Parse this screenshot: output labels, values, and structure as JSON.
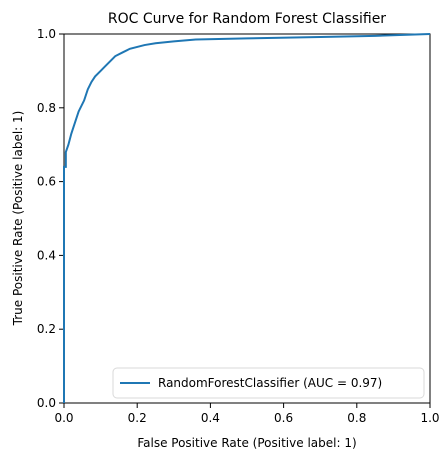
{
  "chart_data": {
    "type": "line",
    "title": "ROC Curve for Random Forest Classifier",
    "xlabel": "False Positive Rate (Positive label: 1)",
    "ylabel": "True Positive Rate (Positive label: 1)",
    "xlim": [
      0,
      1
    ],
    "ylim": [
      0,
      1
    ],
    "xticks": [
      0.0,
      0.2,
      0.4,
      0.6,
      0.8,
      1.0
    ],
    "yticks": [
      0.0,
      0.2,
      0.4,
      0.6,
      0.8,
      1.0
    ],
    "xtick_labels": [
      "0.0",
      "0.2",
      "0.4",
      "0.6",
      "0.8",
      "1.0"
    ],
    "ytick_labels": [
      "0.0",
      "0.2",
      "0.4",
      "0.6",
      "0.8",
      "1.0"
    ],
    "grid": false,
    "legend": {
      "position": "lower-right",
      "entries": [
        {
          "label": "RandomForestClassifier (AUC = 0.97)",
          "color": "#1f77b4"
        }
      ]
    },
    "series": [
      {
        "name": "RandomForestClassifier (AUC = 0.97)",
        "color": "#1f77b4",
        "x": [
          0.0,
          0.0,
          0.005,
          0.005,
          0.012,
          0.02,
          0.03,
          0.04,
          0.055,
          0.065,
          0.075,
          0.085,
          0.1,
          0.11,
          0.125,
          0.14,
          0.16,
          0.18,
          0.2,
          0.22,
          0.25,
          0.3,
          0.36,
          0.5,
          0.7,
          0.85,
          1.0
        ],
        "y": [
          0.0,
          0.64,
          0.64,
          0.68,
          0.7,
          0.73,
          0.76,
          0.79,
          0.82,
          0.85,
          0.87,
          0.885,
          0.9,
          0.91,
          0.925,
          0.94,
          0.95,
          0.96,
          0.965,
          0.97,
          0.975,
          0.98,
          0.985,
          0.988,
          0.992,
          0.995,
          1.0
        ]
      }
    ]
  }
}
